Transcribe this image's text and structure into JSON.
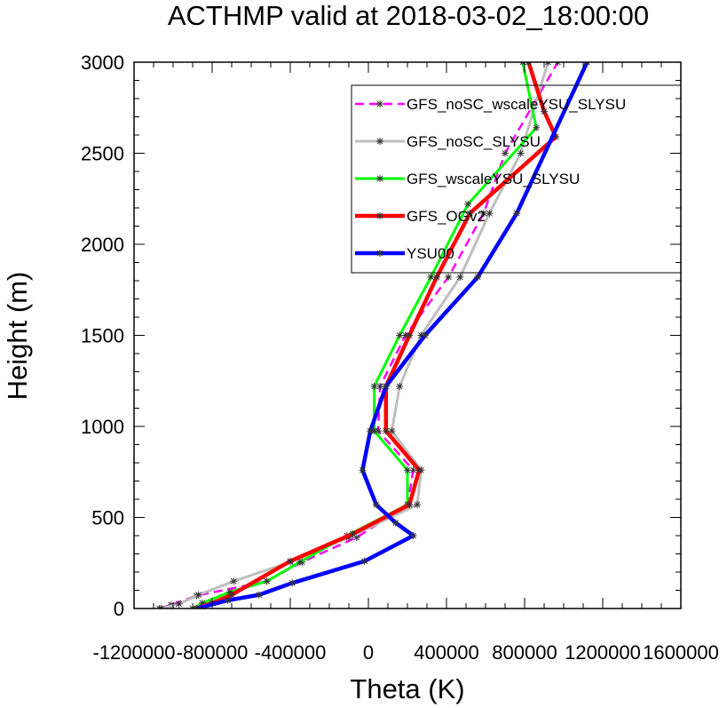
{
  "chart_data": {
    "type": "line",
    "title": "ACTHMP valid at 2018-03-02_18:00:00",
    "xlabel": "Theta (K)",
    "ylabel": "Height (m)",
    "xlim": [
      -1200000,
      1600000
    ],
    "ylim": [
      0,
      3000
    ],
    "x_ticks": [
      -1200000,
      -800000,
      -400000,
      0,
      400000,
      800000,
      1200000,
      1600000
    ],
    "x_tick_labels": [
      "-1200000",
      "-800000",
      "-400000",
      "0",
      "400000",
      "800000",
      "1200000",
      "1600000"
    ],
    "y_ticks": [
      0,
      500,
      1000,
      1500,
      2000,
      2500,
      3000
    ],
    "y_tick_labels": [
      "0",
      "500",
      "1000",
      "1500",
      "2000",
      "2500",
      "3000"
    ],
    "grid": false,
    "legend_position": "top-right",
    "series": [
      {
        "name": "GFS_noSC_wscaleYSU_SLYSU",
        "color": "#ff00ff",
        "line_style": "dashed",
        "line_width": 2.5,
        "points": [
          {
            "x": -1070000,
            "y": 0
          },
          {
            "x": -1010000,
            "y": 20
          },
          {
            "x": -880000,
            "y": 70
          },
          {
            "x": -520000,
            "y": 150
          },
          {
            "x": -340000,
            "y": 255
          },
          {
            "x": -60000,
            "y": 390
          },
          {
            "x": 200000,
            "y": 570
          },
          {
            "x": 230000,
            "y": 760
          },
          {
            "x": 50000,
            "y": 975
          },
          {
            "x": 60000,
            "y": 1220
          },
          {
            "x": 190000,
            "y": 1500
          },
          {
            "x": 410000,
            "y": 1820
          },
          {
            "x": 590000,
            "y": 2170
          },
          {
            "x": 700000,
            "y": 2500
          },
          {
            "x": 970000,
            "y": 3000
          }
        ]
      },
      {
        "name": "GFS_noSC_SLYSU",
        "color": "#bebebe",
        "line_style": "solid",
        "line_width": 3,
        "points": [
          {
            "x": -1060000,
            "y": 0
          },
          {
            "x": -970000,
            "y": 25
          },
          {
            "x": -870000,
            "y": 75
          },
          {
            "x": -690000,
            "y": 150
          },
          {
            "x": -400000,
            "y": 255
          },
          {
            "x": -100000,
            "y": 390
          },
          {
            "x": 250000,
            "y": 570
          },
          {
            "x": 270000,
            "y": 760
          },
          {
            "x": 120000,
            "y": 975
          },
          {
            "x": 160000,
            "y": 1220
          },
          {
            "x": 270000,
            "y": 1500
          },
          {
            "x": 470000,
            "y": 1820
          },
          {
            "x": 620000,
            "y": 2170
          },
          {
            "x": 780000,
            "y": 2500
          },
          {
            "x": 920000,
            "y": 3000
          }
        ]
      },
      {
        "name": "GFS_wscaleYSU_SLYSU",
        "color": "#00ff00",
        "line_style": "solid",
        "line_width": 3,
        "points": [
          {
            "x": -900000,
            "y": 0
          },
          {
            "x": -850000,
            "y": 30
          },
          {
            "x": -710000,
            "y": 90
          },
          {
            "x": -520000,
            "y": 150
          },
          {
            "x": -350000,
            "y": 255
          },
          {
            "x": -110000,
            "y": 400
          },
          {
            "x": 200000,
            "y": 570
          },
          {
            "x": 200000,
            "y": 760
          },
          {
            "x": 30000,
            "y": 975
          },
          {
            "x": 30000,
            "y": 1220
          },
          {
            "x": 160000,
            "y": 1500
          },
          {
            "x": 320000,
            "y": 1820
          },
          {
            "x": 510000,
            "y": 2220
          },
          {
            "x": 860000,
            "y": 2640
          },
          {
            "x": 790000,
            "y": 3000
          }
        ]
      },
      {
        "name": "GFS_OGv2",
        "color": "#ff0000",
        "line_style": "solid",
        "line_width": 4.5,
        "points": [
          {
            "x": -880000,
            "y": 0
          },
          {
            "x": -800000,
            "y": 30
          },
          {
            "x": -700000,
            "y": 75
          },
          {
            "x": -400000,
            "y": 260
          },
          {
            "x": -80000,
            "y": 410
          },
          {
            "x": 210000,
            "y": 570
          },
          {
            "x": 260000,
            "y": 760
          },
          {
            "x": 90000,
            "y": 975
          },
          {
            "x": 90000,
            "y": 1220
          },
          {
            "x": 210000,
            "y": 1500
          },
          {
            "x": 350000,
            "y": 1820
          },
          {
            "x": 520000,
            "y": 2170
          },
          {
            "x": 960000,
            "y": 2590
          },
          {
            "x": 900000,
            "y": 2730
          },
          {
            "x": 820000,
            "y": 3000
          }
        ]
      },
      {
        "name": "YSU00",
        "color": "#0000ff",
        "line_style": "solid",
        "line_width": 4.5,
        "points": [
          {
            "x": -880000,
            "y": 0
          },
          {
            "x": -720000,
            "y": 45
          },
          {
            "x": -560000,
            "y": 75
          },
          {
            "x": -390000,
            "y": 140
          },
          {
            "x": -20000,
            "y": 260
          },
          {
            "x": 230000,
            "y": 400
          },
          {
            "x": 140000,
            "y": 470
          },
          {
            "x": 40000,
            "y": 570
          },
          {
            "x": -30000,
            "y": 760
          },
          {
            "x": 10000,
            "y": 975
          },
          {
            "x": 90000,
            "y": 1220
          },
          {
            "x": 290000,
            "y": 1500
          },
          {
            "x": 560000,
            "y": 1820
          },
          {
            "x": 760000,
            "y": 2170
          },
          {
            "x": 1120000,
            "y": 3000
          }
        ]
      }
    ]
  }
}
